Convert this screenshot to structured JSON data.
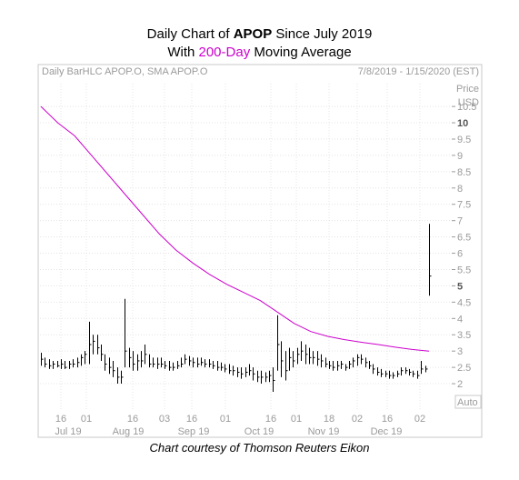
{
  "title": {
    "line1_prefix": "Daily Chart of ",
    "line1_ticker": "APOP",
    "line1_suffix": " Since July 2019",
    "line2_prefix": "With ",
    "line2_highlight": "200-Day",
    "line2_suffix": " Moving Average"
  },
  "chart_header": {
    "left": "Daily BarHLC APOP.O, SMA APOP.O",
    "right": "7/8/2019 - 1/15/2020 (EST)"
  },
  "axis_label_price": "Price",
  "axis_label_currency": "USD",
  "auto_button": "Auto",
  "footer": "Chart courtesy of Thomson Reuters Eikon",
  "colors": {
    "sma": "#cc00cc",
    "bars": "#000000",
    "grid": "#d8d8d8",
    "highlight": "#cc00cc"
  },
  "chart_data": {
    "type": "bar",
    "subtype": "daily-bar-hlc-with-sma",
    "ylim": [
      1.5,
      11.2
    ],
    "y_ticks": [
      "2",
      "2.5",
      "3",
      "3.5",
      "4",
      "4.5",
      "5",
      "5.5",
      "6",
      "6.5",
      "7",
      "7.5",
      "8",
      "8.5",
      "9",
      "9.5",
      "10",
      "10.5"
    ],
    "y_ticks_bold": [
      "5",
      "10"
    ],
    "x_day_ticks": [
      "16",
      "01",
      "16",
      "03",
      "16",
      "01",
      "16",
      "01",
      "18",
      "02",
      "16",
      "02"
    ],
    "x_month_labels": [
      "Jul 19",
      "Aug 19",
      "Sep 19",
      "Oct 19",
      "Nov 19",
      "Dec 19"
    ],
    "grid": true,
    "series": [
      {
        "name": "SMA APOP.O",
        "type": "line",
        "values": [
          10.5,
          10.0,
          9.6,
          9.0,
          8.4,
          7.8,
          7.2,
          6.6,
          6.1,
          5.7,
          5.35,
          5.05,
          4.8,
          4.55,
          4.2,
          3.85,
          3.6,
          3.45,
          3.35,
          3.27,
          3.2,
          3.12,
          3.05,
          3.0
        ]
      },
      {
        "name": "BarHLC APOP.O",
        "type": "hlc",
        "bars": [
          {
            "h": 2.95,
            "l": 2.55,
            "c": 2.75
          },
          {
            "h": 2.8,
            "l": 2.5,
            "c": 2.6
          },
          {
            "h": 2.75,
            "l": 2.45,
            "c": 2.55
          },
          {
            "h": 2.7,
            "l": 2.45,
            "c": 2.6
          },
          {
            "h": 2.7,
            "l": 2.5,
            "c": 2.55
          },
          {
            "h": 2.75,
            "l": 2.45,
            "c": 2.6
          },
          {
            "h": 2.7,
            "l": 2.45,
            "c": 2.5
          },
          {
            "h": 2.7,
            "l": 2.45,
            "c": 2.6
          },
          {
            "h": 2.75,
            "l": 2.5,
            "c": 2.6
          },
          {
            "h": 2.8,
            "l": 2.5,
            "c": 2.65
          },
          {
            "h": 2.9,
            "l": 2.55,
            "c": 2.8
          },
          {
            "h": 3.0,
            "l": 2.6,
            "c": 2.9
          },
          {
            "h": 3.9,
            "l": 2.6,
            "c": 3.2
          },
          {
            "h": 3.5,
            "l": 2.9,
            "c": 3.3
          },
          {
            "h": 3.5,
            "l": 2.9,
            "c": 3.1
          },
          {
            "h": 3.2,
            "l": 2.7,
            "c": 2.9
          },
          {
            "h": 2.9,
            "l": 2.4,
            "c": 2.6
          },
          {
            "h": 2.8,
            "l": 2.3,
            "c": 2.5
          },
          {
            "h": 2.7,
            "l": 2.2,
            "c": 2.4
          },
          {
            "h": 2.5,
            "l": 2.0,
            "c": 2.2
          },
          {
            "h": 2.4,
            "l": 2.0,
            "c": 2.2
          },
          {
            "h": 4.6,
            "l": 2.5,
            "c": 3.0
          },
          {
            "h": 3.1,
            "l": 2.5,
            "c": 2.8
          },
          {
            "h": 3.0,
            "l": 2.4,
            "c": 2.6
          },
          {
            "h": 2.9,
            "l": 2.4,
            "c": 2.7
          },
          {
            "h": 3.0,
            "l": 2.5,
            "c": 2.7
          },
          {
            "h": 3.2,
            "l": 2.6,
            "c": 2.9
          },
          {
            "h": 2.9,
            "l": 2.5,
            "c": 2.6
          },
          {
            "h": 2.8,
            "l": 2.5,
            "c": 2.6
          },
          {
            "h": 2.8,
            "l": 2.45,
            "c": 2.6
          },
          {
            "h": 2.8,
            "l": 2.5,
            "c": 2.6
          },
          {
            "h": 2.7,
            "l": 2.45,
            "c": 2.55
          },
          {
            "h": 2.7,
            "l": 2.4,
            "c": 2.5
          },
          {
            "h": 2.65,
            "l": 2.4,
            "c": 2.5
          },
          {
            "h": 2.7,
            "l": 2.45,
            "c": 2.55
          },
          {
            "h": 2.8,
            "l": 2.5,
            "c": 2.6
          },
          {
            "h": 2.9,
            "l": 2.6,
            "c": 2.75
          },
          {
            "h": 2.85,
            "l": 2.55,
            "c": 2.7
          },
          {
            "h": 2.8,
            "l": 2.5,
            "c": 2.65
          },
          {
            "h": 2.8,
            "l": 2.5,
            "c": 2.6
          },
          {
            "h": 2.8,
            "l": 2.55,
            "c": 2.65
          },
          {
            "h": 2.75,
            "l": 2.5,
            "c": 2.6
          },
          {
            "h": 2.75,
            "l": 2.5,
            "c": 2.6
          },
          {
            "h": 2.7,
            "l": 2.45,
            "c": 2.55
          },
          {
            "h": 2.7,
            "l": 2.4,
            "c": 2.5
          },
          {
            "h": 2.65,
            "l": 2.4,
            "c": 2.5
          },
          {
            "h": 2.6,
            "l": 2.35,
            "c": 2.45
          },
          {
            "h": 2.6,
            "l": 2.3,
            "c": 2.4
          },
          {
            "h": 2.55,
            "l": 2.25,
            "c": 2.4
          },
          {
            "h": 2.5,
            "l": 2.2,
            "c": 2.35
          },
          {
            "h": 2.5,
            "l": 2.15,
            "c": 2.3
          },
          {
            "h": 2.5,
            "l": 2.2,
            "c": 2.35
          },
          {
            "h": 2.6,
            "l": 2.25,
            "c": 2.4
          },
          {
            "h": 2.5,
            "l": 2.1,
            "c": 2.3
          },
          {
            "h": 2.4,
            "l": 2.05,
            "c": 2.2
          },
          {
            "h": 2.4,
            "l": 2.0,
            "c": 2.2
          },
          {
            "h": 2.35,
            "l": 2.05,
            "c": 2.2
          },
          {
            "h": 2.4,
            "l": 2.05,
            "c": 2.25
          },
          {
            "h": 2.5,
            "l": 1.75,
            "c": 2.1
          },
          {
            "h": 4.1,
            "l": 2.4,
            "c": 3.2
          },
          {
            "h": 3.3,
            "l": 2.2,
            "c": 2.7
          },
          {
            "h": 3.0,
            "l": 2.1,
            "c": 2.4
          },
          {
            "h": 3.1,
            "l": 2.4,
            "c": 2.8
          },
          {
            "h": 3.0,
            "l": 2.5,
            "c": 2.7
          },
          {
            "h": 3.1,
            "l": 2.6,
            "c": 2.9
          },
          {
            "h": 3.3,
            "l": 2.7,
            "c": 3.0
          },
          {
            "h": 3.2,
            "l": 2.6,
            "c": 2.9
          },
          {
            "h": 3.1,
            "l": 2.6,
            "c": 2.8
          },
          {
            "h": 3.0,
            "l": 2.6,
            "c": 2.8
          },
          {
            "h": 3.0,
            "l": 2.55,
            "c": 2.75
          },
          {
            "h": 2.9,
            "l": 2.5,
            "c": 2.7
          },
          {
            "h": 2.8,
            "l": 2.5,
            "c": 2.6
          },
          {
            "h": 2.7,
            "l": 2.45,
            "c": 2.55
          },
          {
            "h": 2.7,
            "l": 2.4,
            "c": 2.5
          },
          {
            "h": 2.7,
            "l": 2.4,
            "c": 2.55
          },
          {
            "h": 2.7,
            "l": 2.45,
            "c": 2.6
          },
          {
            "h": 2.6,
            "l": 2.4,
            "c": 2.5
          },
          {
            "h": 2.7,
            "l": 2.45,
            "c": 2.6
          },
          {
            "h": 2.8,
            "l": 2.5,
            "c": 2.7
          },
          {
            "h": 2.9,
            "l": 2.55,
            "c": 2.8
          },
          {
            "h": 2.9,
            "l": 2.6,
            "c": 2.75
          },
          {
            "h": 2.8,
            "l": 2.5,
            "c": 2.65
          },
          {
            "h": 2.7,
            "l": 2.45,
            "c": 2.55
          },
          {
            "h": 2.6,
            "l": 2.3,
            "c": 2.45
          },
          {
            "h": 2.5,
            "l": 2.25,
            "c": 2.35
          },
          {
            "h": 2.45,
            "l": 2.2,
            "c": 2.3
          },
          {
            "h": 2.4,
            "l": 2.2,
            "c": 2.3
          },
          {
            "h": 2.4,
            "l": 2.15,
            "c": 2.25
          },
          {
            "h": 2.35,
            "l": 2.15,
            "c": 2.25
          },
          {
            "h": 2.4,
            "l": 2.2,
            "c": 2.3
          },
          {
            "h": 2.5,
            "l": 2.25,
            "c": 2.4
          },
          {
            "h": 2.5,
            "l": 2.3,
            "c": 2.4
          },
          {
            "h": 2.45,
            "l": 2.25,
            "c": 2.35
          },
          {
            "h": 2.4,
            "l": 2.2,
            "c": 2.3
          },
          {
            "h": 2.4,
            "l": 2.15,
            "c": 2.25
          },
          {
            "h": 2.7,
            "l": 2.3,
            "c": 2.45
          },
          {
            "h": 2.55,
            "l": 2.35,
            "c": 2.45
          },
          {
            "h": 6.9,
            "l": 4.7,
            "c": 5.3
          }
        ]
      }
    ]
  }
}
